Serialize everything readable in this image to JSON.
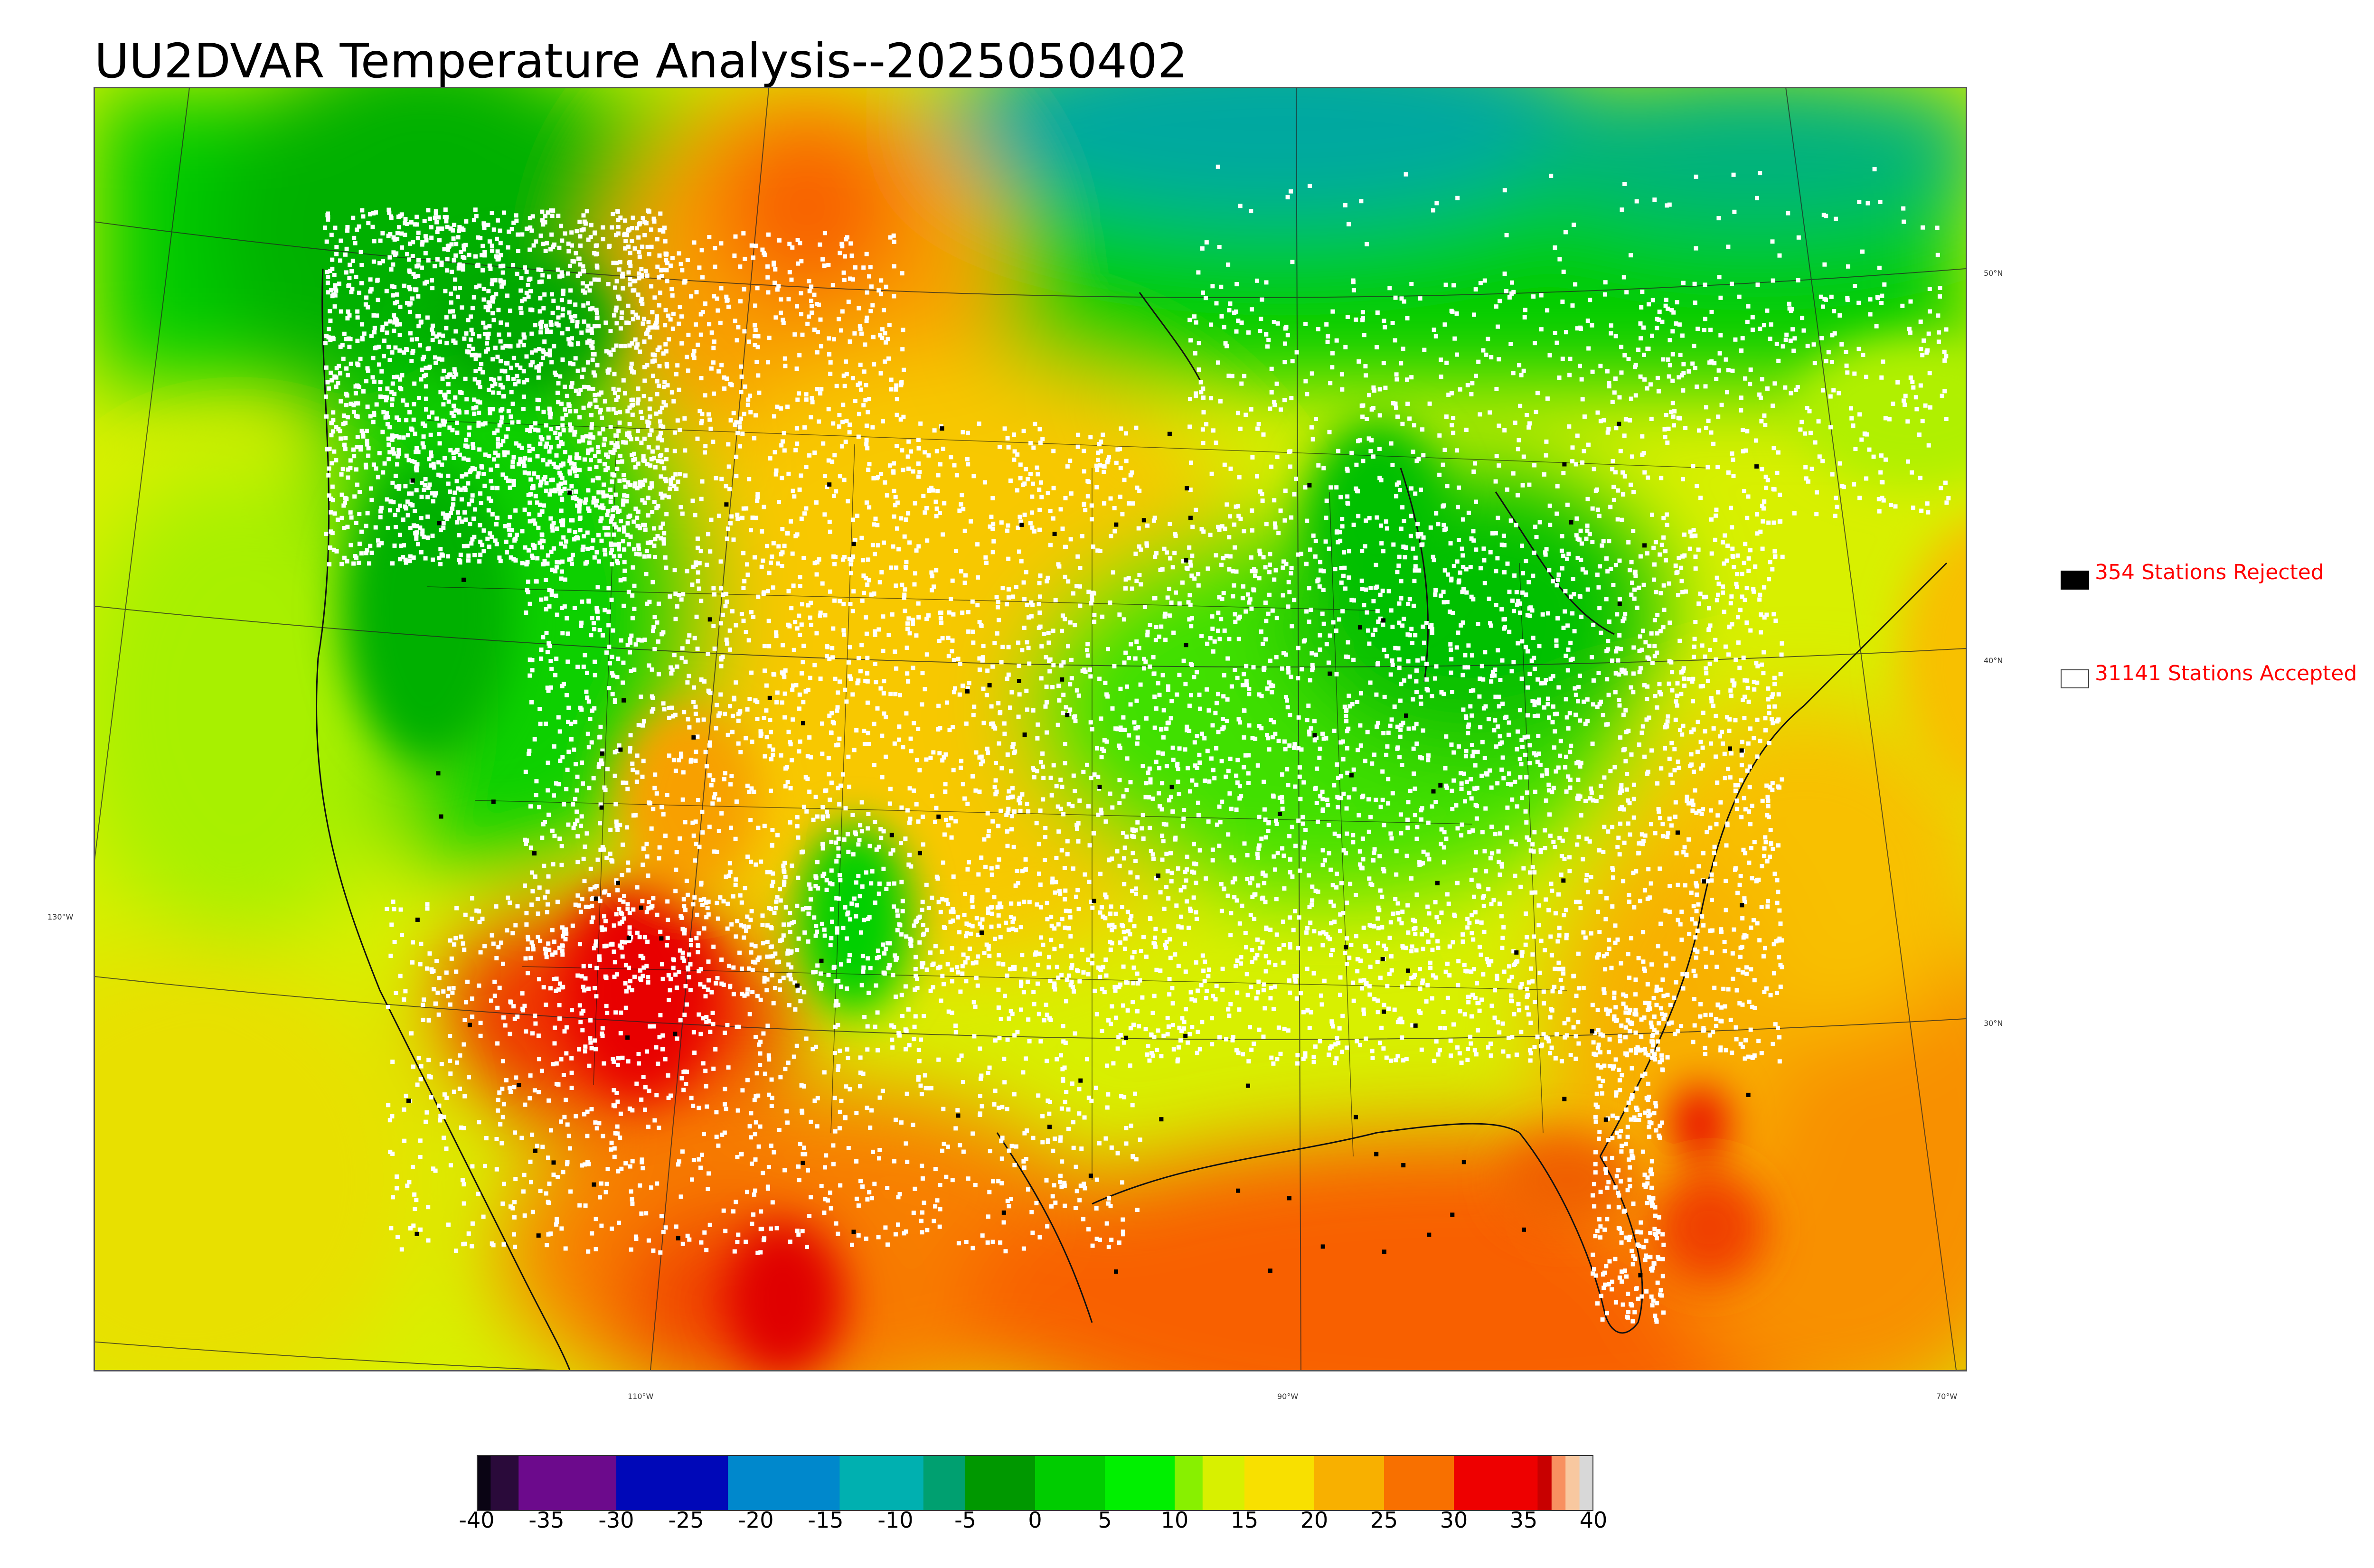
{
  "title": "UU2DVAR Temperature Analysis--2025050402",
  "legend": {
    "rejected": {
      "label": "354 Stations Rejected",
      "color": "#000000"
    },
    "accepted": {
      "label": "31141 Stations Accepted",
      "color": "#ffffff"
    }
  },
  "axes": {
    "lat_labels": [
      "50°N",
      "40°N",
      "30°N"
    ],
    "lon_labels": [
      "130°W",
      "110°W",
      "90°W",
      "70°W"
    ]
  },
  "colorbar": {
    "min": -40,
    "max": 40,
    "tick_labels": [
      "-40",
      "-35",
      "-30",
      "-25",
      "-20",
      "-15",
      "-10",
      "-5",
      "0",
      "5",
      "10",
      "15",
      "20",
      "25",
      "30",
      "35",
      "40"
    ],
    "bands": [
      {
        "from": -40,
        "to": -39,
        "color": "#0a0414"
      },
      {
        "from": -39,
        "to": -37,
        "color": "#2a0a3a"
      },
      {
        "from": -37,
        "to": -30,
        "color": "#6c0a8c"
      },
      {
        "from": -30,
        "to": -22,
        "color": "#0008b8"
      },
      {
        "from": -22,
        "to": -14,
        "color": "#0088cc"
      },
      {
        "from": -14,
        "to": -8,
        "color": "#00b0b0"
      },
      {
        "from": -8,
        "to": -5,
        "color": "#00a070"
      },
      {
        "from": -5,
        "to": 0,
        "color": "#009800"
      },
      {
        "from": 0,
        "to": 5,
        "color": "#00cc00"
      },
      {
        "from": 5,
        "to": 10,
        "color": "#00f000"
      },
      {
        "from": 10,
        "to": 12,
        "color": "#88f000"
      },
      {
        "from": 12,
        "to": 15,
        "color": "#d8f000"
      },
      {
        "from": 15,
        "to": 20,
        "color": "#f8e000"
      },
      {
        "from": 20,
        "to": 25,
        "color": "#f8b000"
      },
      {
        "from": 25,
        "to": 30,
        "color": "#f87000"
      },
      {
        "from": 30,
        "to": 36,
        "color": "#ee0000"
      },
      {
        "from": 36,
        "to": 37,
        "color": "#c80000"
      },
      {
        "from": 37,
        "to": 38,
        "color": "#f89060"
      },
      {
        "from": 38,
        "to": 39,
        "color": "#f8c8a0"
      },
      {
        "from": 39,
        "to": 40,
        "color": "#d8d8d8"
      }
    ]
  },
  "colors": {
    "cold": "#00c000",
    "cool": "#00e000",
    "mild": "#c8f000",
    "warm": "#f8c000",
    "hot": "#f86000",
    "very_hot": "#e00000",
    "canada_teal": "#00a8a0"
  }
}
